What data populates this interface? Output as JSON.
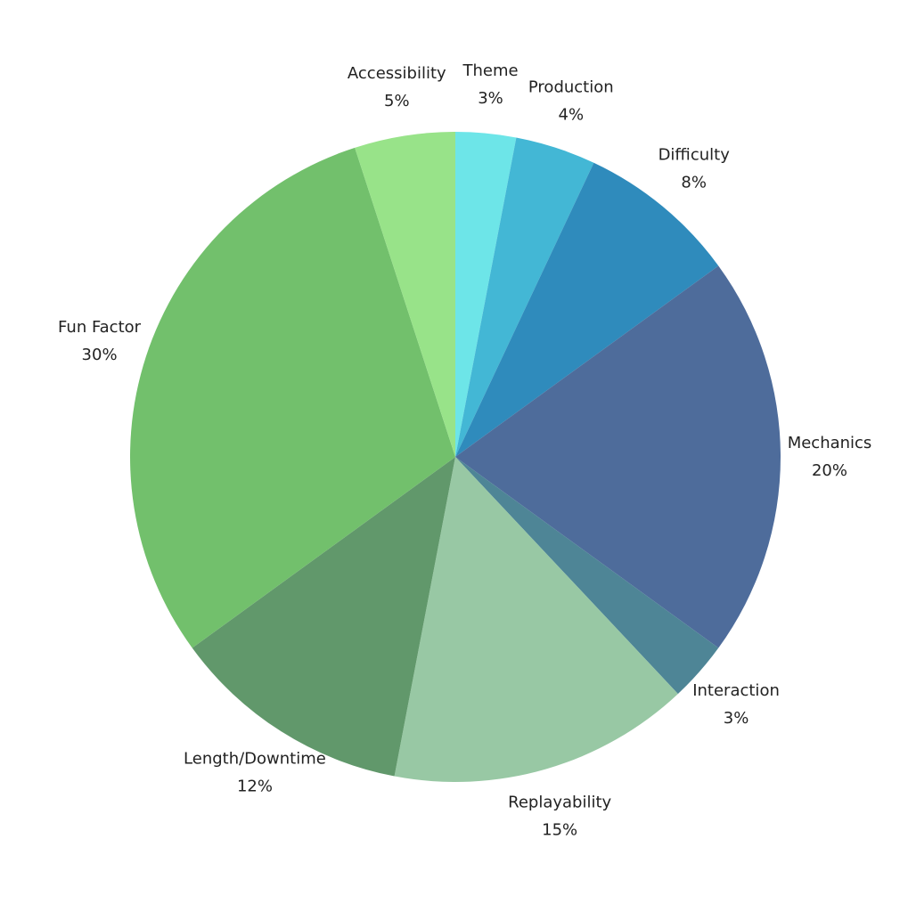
{
  "chart_data": {
    "type": "pie",
    "categories": [
      "Theme",
      "Production",
      "Difficulty",
      "Mechanics",
      "Interaction",
      "Replayability",
      "Length/Downtime",
      "Fun Factor",
      "Accessibility"
    ],
    "values": [
      3,
      4,
      8,
      20,
      3,
      15,
      12,
      30,
      5
    ],
    "value_labels": [
      "3%",
      "4%",
      "8%",
      "20%",
      "3%",
      "15%",
      "12%",
      "30%",
      "5%"
    ],
    "colors": [
      "#6de5e8",
      "#43b7d5",
      "#2f8bbc",
      "#4e6c9b",
      "#4e8596",
      "#98c8a4",
      "#61986b",
      "#72c06c",
      "#98e389"
    ]
  }
}
